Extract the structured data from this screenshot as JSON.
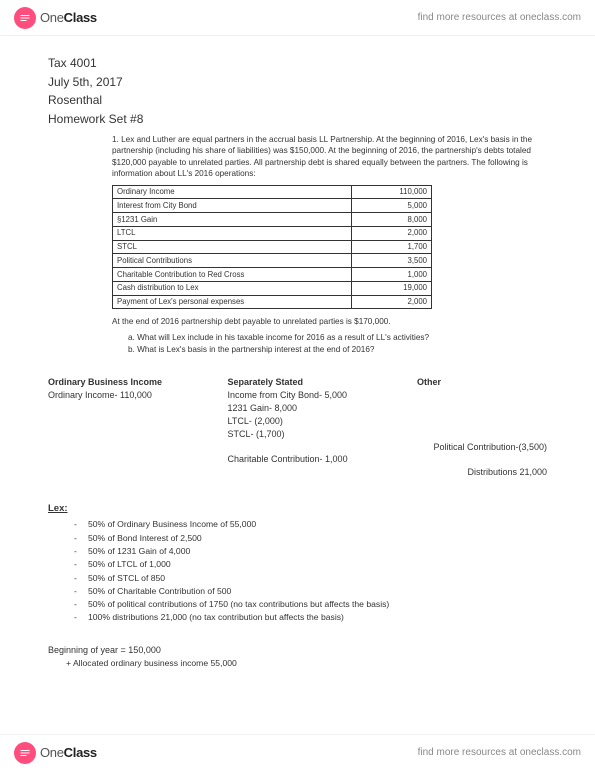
{
  "brand": {
    "one": "One",
    "class": "Class",
    "tagline": "find more resources at oneclass.com"
  },
  "doc": {
    "course": "Tax 4001",
    "date": "July 5th, 2017",
    "name": "Rosenthal",
    "hw": "Homework Set #8"
  },
  "question": {
    "num": "1.",
    "text": "Lex and Luther are equal partners in the accrual basis LL Partnership.  At the beginning of 2016, Lex's basis in the partnership (including his share of liabilities) was $150,000. At the beginning of 2016, the partnership's debts totaled $120,000 payable to unrelated parties.  All partnership debt is shared equally between the partners.  The following is information about LL's 2016 operations:"
  },
  "table": [
    [
      "Ordinary Income",
      "110,000"
    ],
    [
      "Interest from City Bond",
      "5,000"
    ],
    [
      "§1231 Gain",
      "8,000"
    ],
    [
      "LTCL",
      "2,000"
    ],
    [
      "STCL",
      "1,700"
    ],
    [
      "Political Contributions",
      "3,500"
    ],
    [
      "Charitable Contribution to Red Cross",
      "1,000"
    ],
    [
      "Cash distribution to Lex",
      "19,000"
    ],
    [
      "Payment of Lex's personal expenses",
      "2,000"
    ]
  ],
  "after": "At the end of 2016 partnership debt payable to unrelated parties is $170,000.",
  "subq": {
    "a": "a.   What will Lex include in his taxable income for 2016 as a result of LL's activities?",
    "b": "b.   What is Lex's basis in the partnership interest at the end of 2016?"
  },
  "cols": {
    "a_head": "Ordinary Business Income",
    "a_line": "Ordinary Income-  110,000",
    "b_head": "Separately Stated",
    "b_lines": [
      "Income from City Bond-  5,000",
      "1231 Gain-  8,000",
      "LTCL- (2,000)",
      "STCL- (1,700)"
    ],
    "b_char": "Charitable Contribution- 1,000",
    "c_head": "Other",
    "c_pol": "Political Contribution-(3,500)",
    "c_dist": "Distributions 21,000"
  },
  "lex": {
    "head": "Lex:",
    "items": [
      "50% of Ordinary Business Income of 55,000",
      "50% of Bond Interest of 2,500",
      "50% of 1231 Gain of 4,000",
      "50% of LTCL of 1,000",
      "50% of STCL of 850",
      "50% of Charitable Contribution of 500",
      "50% of political contributions of 1750 (no tax contributions but affects the basis)",
      "100% distributions 21,000 (no tax contribution but affects the basis)"
    ]
  },
  "calc": {
    "beg": "Beginning of year = 150,000",
    "plus": "Allocated ordinary business income 55,000"
  }
}
